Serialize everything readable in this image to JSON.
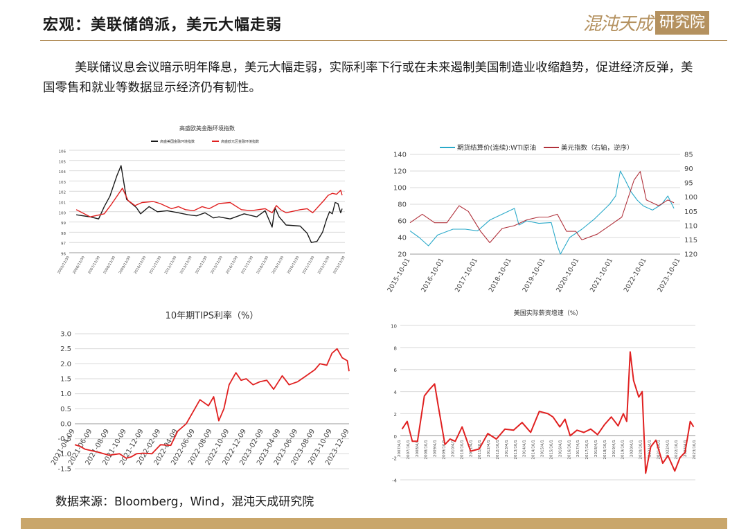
{
  "header": {
    "title": "宏观：美联储鸽派，美元大幅走弱",
    "logo_script": "混沌天成",
    "logo_box": "研究院"
  },
  "summary": "美联储议息会议暗示明年降息，美元大幅走弱，实际利率下行或在未来遏制美国制造业收缩趋势，促进经济反弹，美国零售和就业等数据显示经济仍有韧性。",
  "source_note": "数据来源：Bloomberg，Wind，混沌天成研究院",
  "colors": {
    "black": "#1a1a1a",
    "red": "#e02020",
    "cyan": "#29a9c9",
    "darkred": "#b0303a",
    "gold": "#c9a66b"
  },
  "chart_data": [
    {
      "id": "fci",
      "type": "line",
      "title": "高盛欧美金融环境指数",
      "ylim": [
        96,
        106
      ],
      "y_ticks": [
        "106",
        "105",
        "104",
        "103",
        "102",
        "101",
        "100",
        "99",
        "98",
        "97",
        "96"
      ],
      "x_ticks": [
        "2005/12/30",
        "2006/12/30",
        "2007/12/30",
        "2008/12/30",
        "2009/12/30",
        "2010/12/30",
        "2011/12/30",
        "2012/12/30",
        "2013/12/30",
        "2014/12/30",
        "2015/12/30",
        "2016/12/30",
        "2017/12/30",
        "2018/12/30",
        "2019/12/30",
        "2020/12/30",
        "2021/12/30",
        "2022/12/30",
        "2023/12/30"
      ],
      "series": [
        {
          "name": "高盛美国金融环境指数",
          "color": "#1a1a1a",
          "x": [
            2006,
            2007,
            2007.6,
            2008.0,
            2008.4,
            2008.9,
            2009.2,
            2009.6,
            2010.3,
            2010.6,
            2011.2,
            2011.8,
            2012.5,
            2013.3,
            2014.0,
            2014.6,
            2015.2,
            2015.8,
            2016.2,
            2017.0,
            2018.0,
            2018.9,
            2019.5,
            2020.0,
            2020.2,
            2020.5,
            2021.0,
            2022.0,
            2022.5,
            2022.8,
            2023.2,
            2023.6,
            2023.9,
            2024.1,
            2024.3,
            2024.5,
            2024.7,
            2024.9,
            2025.0
          ],
          "values": [
            99.7,
            99.5,
            99.3,
            100.5,
            101.5,
            103.5,
            104.5,
            101.2,
            100.4,
            99.8,
            100.5,
            100.0,
            100.1,
            99.9,
            99.7,
            99.6,
            99.9,
            99.4,
            99.5,
            99.3,
            99.8,
            99.5,
            100.1,
            98.5,
            100.4,
            99.5,
            98.7,
            98.6,
            97.9,
            97.0,
            97.1,
            98.0,
            99.3,
            100.0,
            99.8,
            100.9,
            100.8,
            99.9,
            100.3
          ]
        },
        {
          "name": "高盛欧元区金融环境指数",
          "color": "#e02020",
          "x": [
            2006,
            2007,
            2008.0,
            2008.5,
            2008.9,
            2009.3,
            2009.7,
            2010.2,
            2010.7,
            2011.5,
            2012.0,
            2012.8,
            2013.3,
            2013.8,
            2014.4,
            2015.0,
            2015.5,
            2016.2,
            2017.0,
            2017.8,
            2018.5,
            2019.5,
            2020.0,
            2020.3,
            2020.6,
            2021.0,
            2022.0,
            2022.5,
            2022.9,
            2023.3,
            2023.7,
            2024.0,
            2024.3,
            2024.6,
            2024.9,
            2025.0
          ],
          "values": [
            100.2,
            99.5,
            99.8,
            100.7,
            101.5,
            102.3,
            101.1,
            100.6,
            100.9,
            101.0,
            100.8,
            100.3,
            100.5,
            100.2,
            100.1,
            100.5,
            100.3,
            100.8,
            100.9,
            100.2,
            100.1,
            100.3,
            99.9,
            100.6,
            100.2,
            99.9,
            100.2,
            100.3,
            99.9,
            100.5,
            101.1,
            101.6,
            101.8,
            101.7,
            102.1,
            101.6
          ]
        }
      ]
    },
    {
      "id": "oil-usd",
      "type": "line",
      "ylim": [
        20,
        140
      ],
      "y_ticks": [
        "140",
        "120",
        "100",
        "80",
        "60",
        "40",
        "20"
      ],
      "y2lim": [
        120,
        85
      ],
      "y2_ticks": [
        "85",
        "90",
        "95",
        "100",
        "105",
        "110",
        "115",
        "120"
      ],
      "x_ticks": [
        "2015-10-01",
        "2016-10-01",
        "2017-10-01",
        "2018-10-01",
        "2019-10-01",
        "2020-10-01",
        "2021-10-01",
        "2022-10-01",
        "2023-10-01"
      ],
      "series": [
        {
          "name": "期货结算价(连续):WTI原油",
          "color": "#29a9c9",
          "axis": "left",
          "x": [
            2015.4,
            2015.7,
            2016.0,
            2016.3,
            2016.8,
            2017.2,
            2017.6,
            2018.0,
            2018.4,
            2018.8,
            2018.95,
            2019.2,
            2019.6,
            2020.0,
            2020.2,
            2020.3,
            2020.6,
            2021.0,
            2021.4,
            2021.9,
            2022.1,
            2022.25,
            2022.4,
            2022.6,
            2022.8,
            2023.0,
            2023.3,
            2023.6,
            2023.8,
            2024.0
          ],
          "values": [
            48,
            40,
            30,
            43,
            50,
            50,
            48,
            61,
            68,
            75,
            55,
            60,
            57,
            58,
            30,
            20,
            40,
            50,
            62,
            80,
            90,
            120,
            110,
            95,
            85,
            78,
            73,
            80,
            90,
            75
          ]
        },
        {
          "name": "美元指数（右轴，逆序）",
          "color": "#b0303a",
          "axis": "right",
          "x": [
            2015.4,
            2015.8,
            2016.2,
            2016.6,
            2017.0,
            2017.3,
            2017.7,
            2018.0,
            2018.4,
            2018.8,
            2019.2,
            2019.6,
            2019.9,
            2020.2,
            2020.5,
            2020.8,
            2021.0,
            2021.5,
            2021.9,
            2022.3,
            2022.7,
            2022.9,
            2023.1,
            2023.5,
            2023.8,
            2024.0
          ],
          "values": [
            96,
            99,
            96,
            96,
            102,
            100,
            93,
            89,
            94,
            95,
            97,
            98,
            98,
            99,
            93,
            93,
            90,
            92,
            95,
            98,
            111,
            114,
            104,
            102,
            104,
            103
          ]
        }
      ]
    },
    {
      "id": "tips",
      "type": "line",
      "title": "10年期TIPS利率（%）",
      "ylim": [
        -1.5,
        3.0
      ],
      "y_ticks": [
        "3.0",
        "2.5",
        "2.0",
        "1.5",
        "1.0",
        "0.5",
        "0.0",
        "-0.5",
        "-1.0",
        "-1.5"
      ],
      "x_ticks": [
        "2021-04-09",
        "2021-06-09",
        "2021-08-09",
        "2021-10-09",
        "2021-12-09",
        "2022-02-09",
        "2022-04-09",
        "2022-06-09",
        "2022-08-09",
        "2022-10-09",
        "2022-12-09",
        "2023-02-09",
        "2023-04-09",
        "2023-06-09",
        "2023-08-09",
        "2023-10-09",
        "2023-12-09"
      ],
      "series": [
        {
          "name": "10年期TIPS利率",
          "color": "#e02020",
          "x": [
            0.0,
            0.3,
            0.6,
            1.0,
            1.4,
            2.0,
            2.6,
            3.0,
            3.3,
            3.6,
            4.0,
            4.5,
            5.0,
            5.6,
            6.0,
            6.5,
            6.9,
            7.3,
            7.8,
            8.1,
            8.4,
            8.7,
            9.0,
            9.4,
            9.7,
            10.0,
            10.4,
            10.8,
            11.2,
            11.6,
            12.1,
            12.5,
            13.0,
            13.5,
            14.0,
            14.3,
            14.7,
            15.0,
            15.3,
            15.6,
            15.9,
            16.0
          ],
          "values": [
            -0.7,
            -0.75,
            -0.85,
            -0.9,
            -0.95,
            -1.05,
            -1.0,
            -1.15,
            -1.1,
            -1.0,
            -0.98,
            -1.0,
            -0.7,
            -0.72,
            -0.25,
            0.0,
            0.4,
            0.8,
            0.6,
            0.9,
            0.1,
            0.5,
            1.3,
            1.7,
            1.45,
            1.5,
            1.3,
            1.4,
            1.45,
            1.15,
            1.6,
            1.3,
            1.4,
            1.6,
            1.8,
            2.0,
            1.95,
            2.35,
            2.5,
            2.2,
            2.1,
            1.75
          ]
        }
      ]
    },
    {
      "id": "wage",
      "type": "line",
      "title": "美国实际薪资增速（%）",
      "ylim": [
        -4,
        10
      ],
      "y_ticks": [
        "10",
        "8",
        "6",
        "4",
        "2",
        "0",
        "-2",
        "-4"
      ],
      "x_ticks": [
        "2007/4/1",
        "2007/10/1",
        "2008/4/1",
        "2008/10/1",
        "2009/4/1",
        "2009/10/1",
        "2010/4/1",
        "2010/10/1",
        "2011/4/1",
        "2011/10/1",
        "2012/4/1",
        "2012/10/1",
        "2013/4/1",
        "2013/10/1",
        "2014/4/1",
        "2014/10/1",
        "2015/4/1",
        "2015/10/1",
        "2016/4/1",
        "2016/10/1",
        "2017/4/1",
        "2017/10/1",
        "2018/4/1",
        "2018/10/1",
        "2019/4/1",
        "2019/10/1",
        "2020/4/1",
        "2020/10/1",
        "2021/4/1",
        "2021/10/1",
        "2022/4/1",
        "2022/10/1",
        "2023/4/1",
        "2023/10/1"
      ],
      "series": [
        {
          "name": "美国实际薪资增速",
          "color": "#e02020",
          "x": [
            2007.0,
            2007.3,
            2007.6,
            2007.9,
            2008.3,
            2008.6,
            2008.9,
            2009.1,
            2009.5,
            2009.8,
            2010.1,
            2010.5,
            2011.0,
            2011.5,
            2012.0,
            2012.5,
            2013.0,
            2013.5,
            2014.0,
            2014.5,
            2015.0,
            2015.5,
            2015.8,
            2016.2,
            2016.5,
            2016.8,
            2017.2,
            2017.6,
            2018.0,
            2018.4,
            2018.8,
            2019.2,
            2019.6,
            2019.9,
            2020.1,
            2020.3,
            2020.5,
            2020.8,
            2021.0,
            2021.2,
            2021.5,
            2021.8,
            2022.2,
            2022.5,
            2022.9,
            2023.2,
            2023.5,
            2023.8,
            2024.0
          ],
          "values": [
            0.6,
            1.3,
            -0.5,
            -0.5,
            3.6,
            4.2,
            4.7,
            2.8,
            -0.8,
            -0.3,
            -0.5,
            0.8,
            -1.4,
            -1.2,
            0.2,
            -0.3,
            0.6,
            0.5,
            1.2,
            0.3,
            2.2,
            2.0,
            1.7,
            0.8,
            1.5,
            0.0,
            0.5,
            0.3,
            0.6,
            0.1,
            1.0,
            1.7,
            0.9,
            2.0,
            1.3,
            7.6,
            5.0,
            3.5,
            4.0,
            -3.4,
            -1.0,
            -0.4,
            -2.5,
            -1.8,
            -3.2,
            -2.0,
            -1.5,
            1.3,
            0.8
          ]
        }
      ]
    }
  ]
}
